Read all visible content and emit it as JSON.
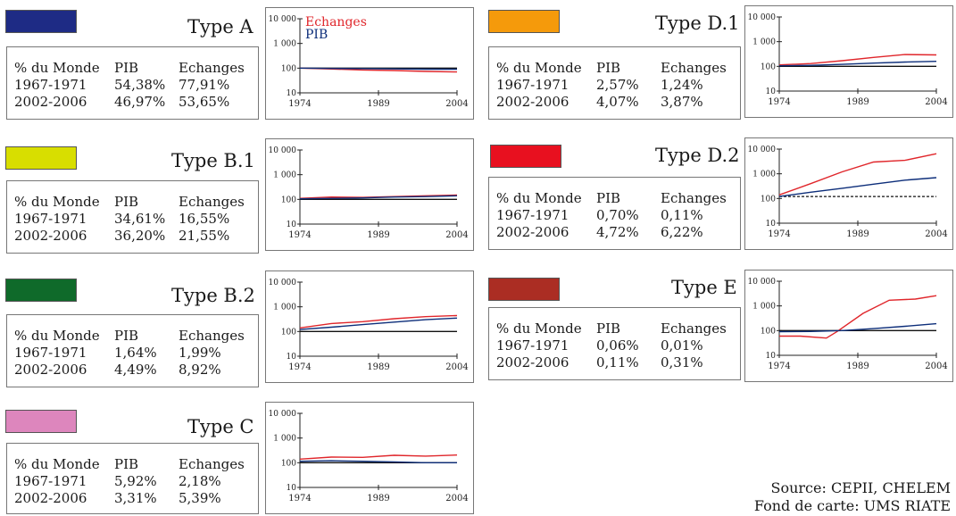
{
  "colors": {
    "red": "#e0262b",
    "blue": "#0d2e7a",
    "black": "#111111"
  },
  "stats_header": {
    "col1": "% du Monde",
    "col2": "PIB",
    "col3": "Echanges"
  },
  "panels": [
    {
      "id": "A",
      "title": "Type A",
      "color": "#1e2b85",
      "rows": [
        {
          "period": "1967-1971",
          "pib": "54,38%",
          "echanges": "77,91%"
        },
        {
          "period": "2002-2006",
          "pib": "46,97%",
          "echanges": "53,65%"
        }
      ]
    },
    {
      "id": "B1",
      "title": "Type B.1",
      "color": "#d8de00",
      "rows": [
        {
          "period": "1967-1971",
          "pib": "34,61%",
          "echanges": "16,55%"
        },
        {
          "period": "2002-2006",
          "pib": "36,20%",
          "echanges": "21,55%"
        }
      ]
    },
    {
      "id": "B2",
      "title": "Type B.2",
      "color": "#0f6a2a",
      "rows": [
        {
          "period": "1967-1971",
          "pib": "1,64%",
          "echanges": "1,99%"
        },
        {
          "period": "2002-2006",
          "pib": "4,49%",
          "echanges": "8,92%"
        }
      ]
    },
    {
      "id": "C",
      "title": "Type C",
      "color": "#dd86bd",
      "rows": [
        {
          "period": "1967-1971",
          "pib": "5,92%",
          "echanges": "2,18%"
        },
        {
          "period": "2002-2006",
          "pib": "3,31%",
          "echanges": "5,39%"
        }
      ]
    },
    {
      "id": "D1",
      "title": "Type D.1",
      "color": "#f59a0b",
      "rows": [
        {
          "period": "1967-1971",
          "pib": "2,57%",
          "echanges": "1,24%"
        },
        {
          "period": "2002-2006",
          "pib": "4,07%",
          "echanges": "3,87%"
        }
      ]
    },
    {
      "id": "D2",
      "title": "Type D.2",
      "color": "#e8101f",
      "rows": [
        {
          "period": "1967-1971",
          "pib": "0,70%",
          "echanges": "0,11%"
        },
        {
          "period": "2002-2006",
          "pib": "4,72%",
          "echanges": "6,22%"
        }
      ]
    },
    {
      "id": "E",
      "title": "Type E",
      "color": "#ab2d23",
      "rows": [
        {
          "period": "1967-1971",
          "pib": "0,06%",
          "echanges": "0,01%"
        },
        {
          "period": "2002-2006",
          "pib": "0,11%",
          "echanges": "0,31%"
        }
      ]
    }
  ],
  "chart_data": [
    {
      "id": "A",
      "type": "line",
      "y_scale": "log",
      "ylim": [
        10,
        10000
      ],
      "xlim": [
        1974,
        2004
      ],
      "x_ticks": [
        "1974",
        "1989",
        "2004"
      ],
      "y_ticks": [
        "10",
        "100",
        "1 000",
        "10 000"
      ],
      "legend": {
        "placement": "top-left",
        "entries": [
          {
            "name": "Echanges",
            "color": "#e0262b"
          },
          {
            "name": "PIB",
            "color": "#0d2e7a"
          }
        ]
      },
      "reference": {
        "y": 100,
        "style": "solid"
      },
      "series": [
        {
          "name": "Echanges",
          "color": "#e0262b",
          "x": [
            1974,
            1980,
            1986,
            1992,
            1998,
            2004
          ],
          "y": [
            100,
            92,
            84,
            80,
            74,
            70
          ]
        },
        {
          "name": "PIB",
          "color": "#0d2e7a",
          "x": [
            1974,
            1980,
            1986,
            1992,
            1998,
            2004
          ],
          "y": [
            100,
            97,
            95,
            93,
            91,
            90
          ]
        }
      ]
    },
    {
      "id": "B1",
      "type": "line",
      "y_scale": "log",
      "ylim": [
        10,
        10000
      ],
      "xlim": [
        1974,
        2004
      ],
      "x_ticks": [
        "1974",
        "1989",
        "2004"
      ],
      "y_ticks": [
        "10",
        "100",
        "1 000",
        "10 000"
      ],
      "reference": {
        "y": 100,
        "style": "solid"
      },
      "series": [
        {
          "color": "#e0262b",
          "x": [
            1974,
            1980,
            1986,
            1992,
            1998,
            2004
          ],
          "y": [
            110,
            125,
            120,
            130,
            140,
            150
          ]
        },
        {
          "color": "#0d2e7a",
          "x": [
            1974,
            1980,
            1986,
            1992,
            1998,
            2004
          ],
          "y": [
            105,
            110,
            115,
            125,
            130,
            140
          ]
        }
      ]
    },
    {
      "id": "B2",
      "type": "line",
      "y_scale": "log",
      "ylim": [
        10,
        10000
      ],
      "xlim": [
        1974,
        2004
      ],
      "x_ticks": [
        "1974",
        "1989",
        "2004"
      ],
      "y_ticks": [
        "10",
        "100",
        "1 000",
        "10 000"
      ],
      "reference": {
        "y": 100,
        "style": "solid"
      },
      "series": [
        {
          "color": "#e0262b",
          "x": [
            1974,
            1980,
            1986,
            1992,
            1998,
            2004
          ],
          "y": [
            140,
            210,
            250,
            330,
            400,
            440
          ]
        },
        {
          "color": "#0d2e7a",
          "x": [
            1974,
            1980,
            1986,
            1992,
            1998,
            2004
          ],
          "y": [
            120,
            150,
            190,
            240,
            300,
            350
          ]
        }
      ]
    },
    {
      "id": "C",
      "type": "line",
      "y_scale": "log",
      "ylim": [
        10,
        10000
      ],
      "xlim": [
        1974,
        2004
      ],
      "x_ticks": [
        "1974",
        "1989",
        "2004"
      ],
      "y_ticks": [
        "10",
        "100",
        "1 000",
        "10 000"
      ],
      "reference": {
        "y": 100,
        "style": "solid"
      },
      "series": [
        {
          "color": "#e0262b",
          "x": [
            1974,
            1980,
            1986,
            1992,
            1998,
            2004
          ],
          "y": [
            140,
            170,
            165,
            200,
            185,
            205
          ]
        },
        {
          "color": "#0d2e7a",
          "x": [
            1974,
            1980,
            1986,
            1992,
            1998,
            2004
          ],
          "y": [
            115,
            120,
            115,
            108,
            100,
            100
          ]
        }
      ]
    },
    {
      "id": "D1",
      "type": "line",
      "y_scale": "log",
      "ylim": [
        10,
        10000
      ],
      "xlim": [
        1974,
        2004
      ],
      "x_ticks": [
        "1974",
        "1989",
        "2004"
      ],
      "y_ticks": [
        "10",
        "100",
        "1 000",
        "10 000"
      ],
      "reference": {
        "y": 100,
        "style": "solid"
      },
      "series": [
        {
          "color": "#e0262b",
          "x": [
            1974,
            1980,
            1986,
            1992,
            1998,
            2004
          ],
          "y": [
            115,
            130,
            170,
            230,
            300,
            290
          ]
        },
        {
          "color": "#0d2e7a",
          "x": [
            1974,
            1980,
            1986,
            1992,
            1998,
            2004
          ],
          "y": [
            105,
            110,
            120,
            135,
            150,
            160
          ]
        }
      ]
    },
    {
      "id": "D2",
      "type": "line",
      "y_scale": "log",
      "ylim": [
        10,
        10000
      ],
      "xlim": [
        1974,
        2004
      ],
      "x_ticks": [
        "1974",
        "1989",
        "2004"
      ],
      "y_ticks": [
        "10",
        "100",
        "1 000",
        "10 000"
      ],
      "reference": {
        "y": 120,
        "style": "dashed"
      },
      "series": [
        {
          "color": "#e0262b",
          "x": [
            1974,
            1980,
            1986,
            1992,
            1998,
            2004
          ],
          "y": [
            140,
            400,
            1200,
            3000,
            3500,
            6500
          ]
        },
        {
          "color": "#0d2e7a",
          "x": [
            1974,
            1980,
            1986,
            1992,
            1998,
            2004
          ],
          "y": [
            120,
            180,
            260,
            380,
            550,
            700
          ]
        }
      ]
    },
    {
      "id": "E",
      "type": "line",
      "y_scale": "log",
      "ylim": [
        10,
        10000
      ],
      "xlim": [
        1974,
        2004
      ],
      "x_ticks": [
        "1974",
        "1989",
        "2004"
      ],
      "y_ticks": [
        "10",
        "100",
        "1 000",
        "10 000"
      ],
      "reference": {
        "y": 100,
        "style": "solid"
      },
      "series": [
        {
          "color": "#e0262b",
          "x": [
            1974,
            1978,
            1983,
            1985,
            1990,
            1995,
            2000,
            2004
          ],
          "y": [
            60,
            60,
            50,
            90,
            500,
            1700,
            1900,
            2600
          ]
        },
        {
          "color": "#0d2e7a",
          "x": [
            1974,
            1980,
            1986,
            1992,
            1998,
            2004
          ],
          "y": [
            90,
            92,
            100,
            120,
            150,
            190
          ]
        }
      ]
    }
  ],
  "source": {
    "line1": "Source: CEPII, CHELEM",
    "line2": "Fond de carte: UMS RIATE"
  }
}
